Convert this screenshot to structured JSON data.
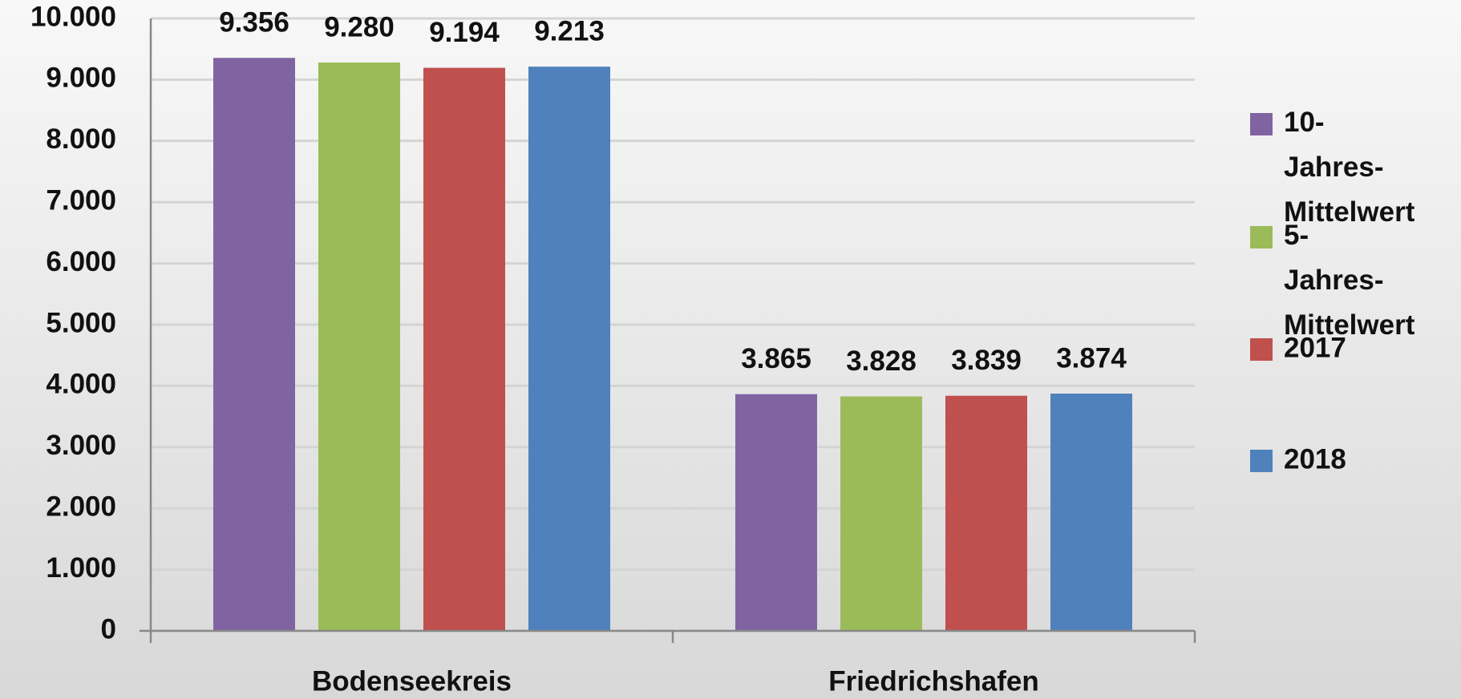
{
  "chart_data": {
    "type": "bar",
    "categories": [
      "Bodenseekreis",
      "Friedrichshafen"
    ],
    "series": [
      {
        "name": "10-Jahres-Mittelwert",
        "color": "#8064a2",
        "values": [
          9356,
          3865
        ],
        "value_labels": [
          "9.356",
          "3.865"
        ]
      },
      {
        "name": "5-Jahres-Mittelwert",
        "color": "#9bbb59",
        "values": [
          9280,
          3828
        ],
        "value_labels": [
          "9.280",
          "3.828"
        ]
      },
      {
        "name": "2017",
        "color": "#c0504d",
        "values": [
          9194,
          3839
        ],
        "value_labels": [
          "9.194",
          "3.839"
        ]
      },
      {
        "name": "2018",
        "color": "#4f81bd",
        "values": [
          9213,
          3874
        ],
        "value_labels": [
          "9.213",
          "3.874"
        ]
      }
    ],
    "ylim": [
      0,
      10000
    ],
    "yticks": [
      0,
      {
        "value": 1000,
        "label": "1.000"
      },
      {
        "value": 2000,
        "label": "2.000"
      },
      {
        "value": 3000,
        "label": "3.000"
      },
      {
        "value": 4000,
        "label": "4.000"
      },
      {
        "value": 5000,
        "label": "5.000"
      },
      {
        "value": 6000,
        "label": "6.000"
      },
      {
        "value": 7000,
        "label": "7.000"
      },
      {
        "value": 8000,
        "label": "8.000"
      },
      {
        "value": 9000,
        "label": "9.000"
      },
      {
        "value": 10000,
        "label": "10.000"
      }
    ],
    "grid": true,
    "legend": "right"
  }
}
